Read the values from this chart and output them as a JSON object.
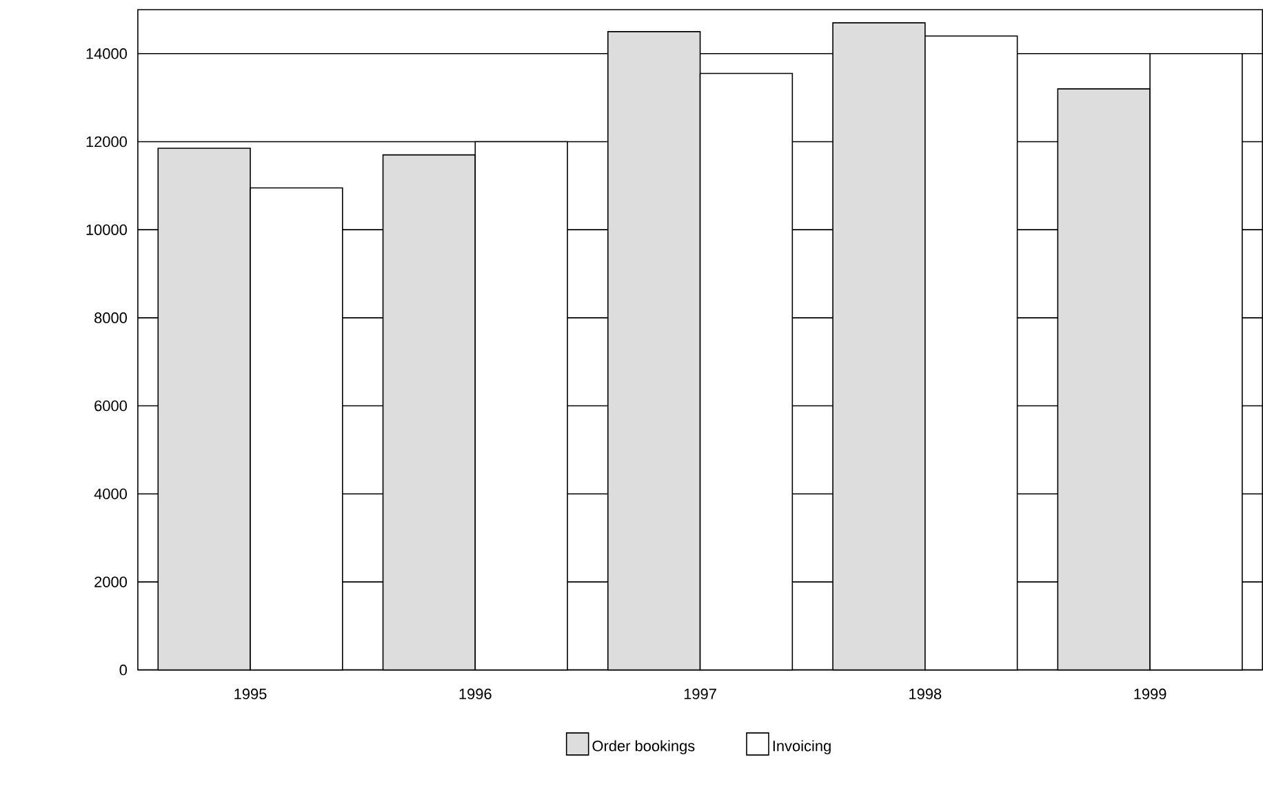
{
  "chart_data": {
    "type": "bar",
    "categories": [
      "1995",
      "1996",
      "1997",
      "1998",
      "1999"
    ],
    "series": [
      {
        "name": "Order bookings",
        "color": "#dddddd",
        "values": [
          11850,
          11700,
          14500,
          14700,
          13200
        ]
      },
      {
        "name": "Invoicing",
        "color": "#ffffff",
        "values": [
          10950,
          12000,
          13550,
          14400,
          14000
        ]
      }
    ],
    "ylim": [
      0,
      15000
    ],
    "yticks": [
      0,
      2000,
      4000,
      6000,
      8000,
      10000,
      12000,
      14000
    ],
    "grid": "y",
    "legend": "bottom"
  }
}
